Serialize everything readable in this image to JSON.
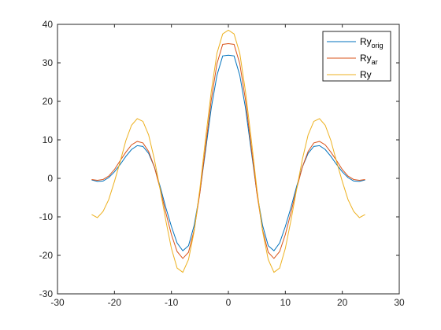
{
  "chart_data": {
    "type": "line",
    "xlim": [
      -30,
      30
    ],
    "ylim": [
      -30,
      40
    ],
    "xticks": [
      -30,
      -20,
      -10,
      0,
      10,
      20,
      30
    ],
    "yticks": [
      -30,
      -20,
      -10,
      0,
      10,
      20,
      30,
      40
    ],
    "grid": false,
    "legend_position": "top-right",
    "x": [
      -24,
      -23,
      -22,
      -21,
      -20,
      -19,
      -18,
      -17,
      -16,
      -15,
      -14,
      -13,
      -12,
      -11,
      -10,
      -9,
      -8,
      -7,
      -6,
      -5,
      -4,
      -3,
      -2,
      -1,
      0,
      1,
      2,
      3,
      4,
      5,
      6,
      7,
      8,
      9,
      10,
      11,
      12,
      13,
      14,
      15,
      16,
      17,
      18,
      19,
      20,
      21,
      22,
      23,
      24
    ],
    "series": [
      {
        "name": "Ry",
        "name_sub": "orig",
        "color": "#0072BD",
        "values": [
          -0.4,
          -0.8,
          -0.7,
          0.2,
          1.7,
          3.6,
          5.7,
          7.5,
          8.5,
          8.3,
          6.5,
          3.0,
          -2.0,
          -7.5,
          -12.5,
          -16.8,
          -18.8,
          -17.5,
          -12.2,
          -3.6,
          7.3,
          18.3,
          26.8,
          31.8,
          32.0,
          31.8,
          26.8,
          18.3,
          7.3,
          -3.6,
          -12.2,
          -17.5,
          -18.8,
          -16.8,
          -12.5,
          -7.5,
          -2.0,
          3.0,
          6.5,
          8.3,
          8.5,
          7.5,
          5.7,
          3.6,
          1.7,
          0.2,
          -0.7,
          -0.8,
          -0.4
        ]
      },
      {
        "name": "Ry",
        "name_sub": "ar",
        "color": "#D95319",
        "values": [
          -0.3,
          -0.5,
          -0.3,
          0.6,
          2.3,
          4.6,
          6.8,
          8.7,
          9.6,
          9.2,
          7.0,
          3.0,
          -2.6,
          -8.8,
          -14.6,
          -19.0,
          -20.8,
          -19.2,
          -13.4,
          -3.8,
          8.3,
          20.4,
          29.8,
          34.8,
          35.0,
          34.8,
          29.8,
          20.4,
          8.3,
          -3.8,
          -13.4,
          -19.2,
          -20.8,
          -19.0,
          -14.6,
          -8.8,
          -2.6,
          3.0,
          7.0,
          9.2,
          9.6,
          8.7,
          6.8,
          4.6,
          2.3,
          0.6,
          -0.3,
          -0.5,
          -0.3
        ]
      },
      {
        "name": "Ry",
        "name_sub": "",
        "color": "#EDB120",
        "values": [
          -9.4,
          -10.2,
          -8.6,
          -5.5,
          -0.8,
          4.3,
          9.8,
          13.8,
          15.5,
          14.8,
          11.3,
          5.0,
          -2.7,
          -10.8,
          -18.2,
          -23.3,
          -24.4,
          -21.1,
          -13.7,
          -2.7,
          10.4,
          22.6,
          32.5,
          37.5,
          38.5,
          37.5,
          32.5,
          22.6,
          10.4,
          -2.7,
          -13.7,
          -21.1,
          -24.4,
          -23.3,
          -18.2,
          -10.8,
          -2.7,
          5.0,
          11.3,
          14.8,
          15.5,
          13.8,
          9.8,
          4.3,
          -0.8,
          -5.5,
          -8.6,
          -10.2,
          -9.4
        ]
      }
    ]
  }
}
